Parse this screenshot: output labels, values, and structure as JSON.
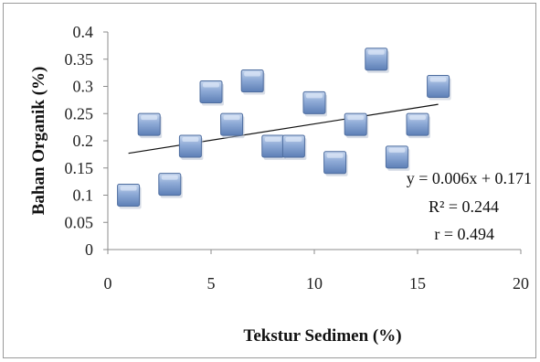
{
  "chart_data": {
    "type": "scatter",
    "title": "",
    "xlabel": "Tekstur Sedimen (%)",
    "ylabel": "Bahan Organik (%)",
    "xlim": [
      0,
      20
    ],
    "ylim": [
      0,
      0.4
    ],
    "x_ticks": [
      0,
      5,
      10,
      15,
      20
    ],
    "x_tick_labels": [
      "0",
      "5",
      "10",
      "15",
      "20"
    ],
    "y_ticks": [
      0,
      0.05,
      0.1,
      0.15,
      0.2,
      0.25,
      0.3,
      0.35,
      0.4
    ],
    "y_tick_labels": [
      "0",
      "0.05",
      "0.1",
      "0.15",
      "0.2",
      "0.25",
      "0.3",
      "0.35",
      "0.4"
    ],
    "grid": false,
    "legend": "none",
    "series": [
      {
        "points": [
          {
            "x": 1,
            "y": 0.1
          },
          {
            "x": 2,
            "y": 0.23
          },
          {
            "x": 3,
            "y": 0.12
          },
          {
            "x": 4,
            "y": 0.19
          },
          {
            "x": 5,
            "y": 0.29
          },
          {
            "x": 6,
            "y": 0.23
          },
          {
            "x": 7,
            "y": 0.31
          },
          {
            "x": 8,
            "y": 0.19
          },
          {
            "x": 9,
            "y": 0.19
          },
          {
            "x": 10,
            "y": 0.27
          },
          {
            "x": 11,
            "y": 0.16
          },
          {
            "x": 12,
            "y": 0.23
          },
          {
            "x": 13,
            "y": 0.35
          },
          {
            "x": 14,
            "y": 0.17
          },
          {
            "x": 15,
            "y": 0.23
          },
          {
            "x": 16,
            "y": 0.3
          }
        ],
        "marker": "square",
        "marker_color": "#7f9fcf"
      }
    ],
    "trendline": {
      "type": "linear",
      "slope": 0.006,
      "intercept": 0.171,
      "x_range": [
        1,
        16
      ],
      "color": "#111111"
    },
    "annotations": [
      "y = 0.006x + 0.171",
      "R² = 0.244",
      "r = 0.494"
    ]
  }
}
